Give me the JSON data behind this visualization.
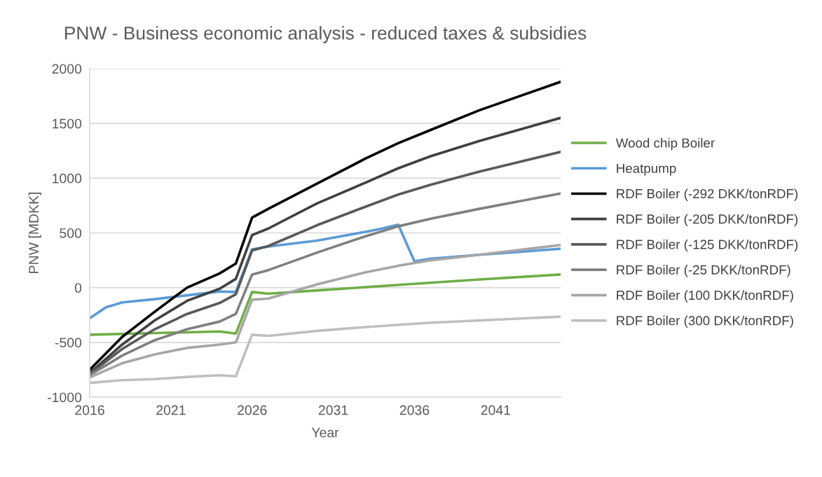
{
  "chart_data": {
    "type": "line",
    "title": "PNW - Business economic analysis - reduced taxes & subsidies",
    "xlabel": "Year",
    "ylabel": "PNW [MDKK]",
    "xlim": [
      2016,
      2045
    ],
    "xticks": [
      2016,
      2021,
      2026,
      2031,
      2036,
      2041
    ],
    "ylim": [
      -1000,
      2000
    ],
    "yticks": [
      -1000,
      -500,
      0,
      500,
      1000,
      1500,
      2000
    ],
    "grid": "y",
    "legend": "right",
    "marker": "none",
    "line_style": "solid",
    "series": [
      {
        "name": "Wood chip Boiler",
        "color": "#70ad47",
        "x": [
          2016,
          2020,
          2024,
          2025,
          2026,
          2027,
          2030,
          2035,
          2040,
          2045
        ],
        "values": [
          -430,
          -415,
          -400,
          -420,
          -40,
          -55,
          -25,
          25,
          75,
          120
        ]
      },
      {
        "name": "Heatpump",
        "color": "#5b9bd5",
        "x": [
          2016,
          2017,
          2018,
          2020,
          2022,
          2024,
          2025,
          2026,
          2027,
          2030,
          2033,
          2034,
          2035,
          2036,
          2037,
          2040,
          2045
        ],
        "values": [
          -280,
          -180,
          -135,
          -105,
          -70,
          -35,
          -40,
          350,
          375,
          430,
          510,
          540,
          575,
          240,
          265,
          300,
          355
        ]
      },
      {
        "name": "RDF Boiler (-292 DKK/tonRDF)",
        "color": "#000000",
        "x": [
          2016,
          2018,
          2020,
          2022,
          2024,
          2025,
          2026,
          2027,
          2030,
          2033,
          2035,
          2037,
          2040,
          2045
        ],
        "values": [
          -750,
          -450,
          -220,
          0,
          130,
          220,
          640,
          720,
          950,
          1180,
          1320,
          1440,
          1620,
          1880
        ]
      },
      {
        "name": "RDF Boiler (-205 DKK/tonRDF)",
        "color": "#404040",
        "x": [
          2016,
          2018,
          2020,
          2022,
          2024,
          2025,
          2026,
          2027,
          2030,
          2033,
          2035,
          2037,
          2040,
          2045
        ],
        "values": [
          -780,
          -520,
          -300,
          -120,
          -10,
          80,
          480,
          540,
          770,
          960,
          1090,
          1200,
          1340,
          1550
        ]
      },
      {
        "name": "RDF Boiler (-125 DKK/tonRDF)",
        "color": "#595959",
        "x": [
          2016,
          2018,
          2020,
          2022,
          2024,
          2025,
          2026,
          2027,
          2030,
          2033,
          2035,
          2037,
          2040,
          2045
        ],
        "values": [
          -790,
          -560,
          -380,
          -240,
          -140,
          -60,
          340,
          380,
          570,
          740,
          850,
          940,
          1060,
          1240
        ]
      },
      {
        "name": "RDF Boiler (-25 DKK/tonRDF)",
        "color": "#7f7f7f",
        "x": [
          2016,
          2018,
          2020,
          2022,
          2024,
          2025,
          2026,
          2027,
          2030,
          2033,
          2035,
          2037,
          2040,
          2045
        ],
        "values": [
          -800,
          -620,
          -480,
          -380,
          -310,
          -240,
          120,
          160,
          320,
          470,
          560,
          630,
          720,
          860
        ]
      },
      {
        "name": "RDF Boiler (100 DKK/tonRDF)",
        "color": "#a6a6a6",
        "x": [
          2016,
          2018,
          2020,
          2022,
          2024,
          2025,
          2026,
          2027,
          2030,
          2033,
          2035,
          2037,
          2040,
          2045
        ],
        "values": [
          -820,
          -690,
          -610,
          -550,
          -520,
          -500,
          -110,
          -100,
          30,
          140,
          200,
          250,
          300,
          390
        ]
      },
      {
        "name": "RDF Boiler (300 DKK/tonRDF)",
        "color": "#bfbfbf",
        "x": [
          2016,
          2018,
          2020,
          2022,
          2024,
          2025,
          2026,
          2027,
          2030,
          2033,
          2035,
          2037,
          2040,
          2045
        ],
        "values": [
          -870,
          -845,
          -835,
          -815,
          -800,
          -810,
          -430,
          -440,
          -395,
          -360,
          -340,
          -320,
          -300,
          -265
        ]
      }
    ]
  }
}
